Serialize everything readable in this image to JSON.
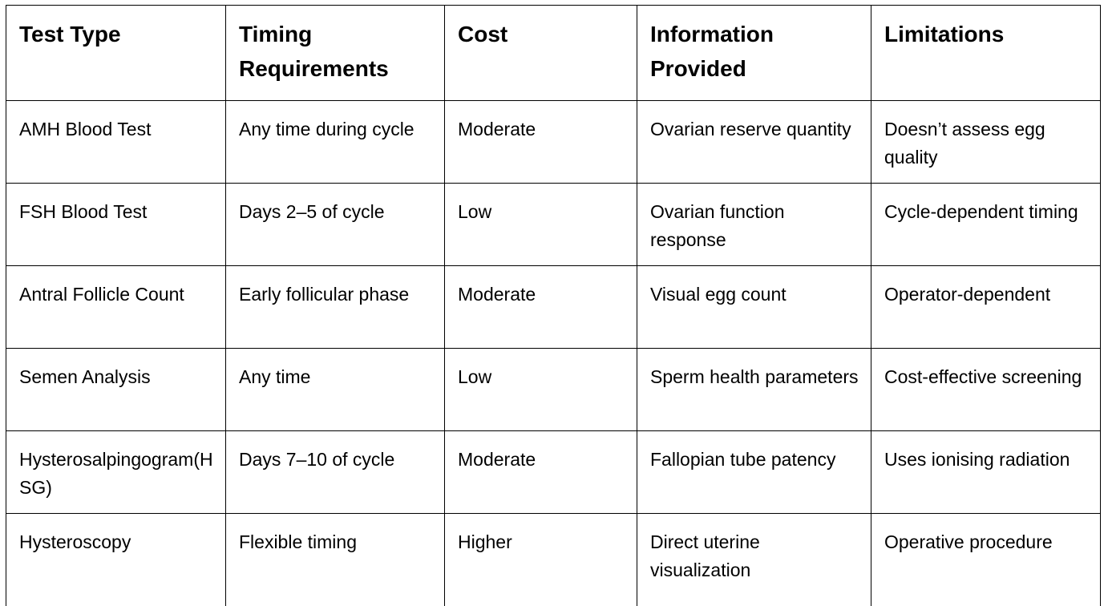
{
  "table": {
    "headers": [
      "Test Type",
      "Timing Requirements",
      "Cost",
      "Information Provided",
      "Limitations"
    ],
    "rows": [
      [
        "AMH Blood Test",
        "Any time during cycle",
        "Moderate",
        "Ovarian reserve quantity",
        "Doesn’t assess egg quality"
      ],
      [
        "FSH Blood Test",
        "Days 2–5 of cycle",
        "Low",
        "Ovarian function response",
        "Cycle-dependent timing"
      ],
      [
        "Antral Follicle Count",
        "Early follicular phase",
        "Moderate",
        "Visual egg count",
        "Operator-dependent"
      ],
      [
        "Semen Analysis",
        "Any time",
        "Low",
        "Sperm health parameters",
        "Cost-effective screening"
      ],
      [
        "Hysterosalpingogram(HSG)",
        "Days 7–10 of cycle",
        "Moderate",
        "Fallopian tube patency",
        "Uses ionising radiation"
      ],
      [
        "Hysteroscopy",
        "Flexible timing",
        "Higher",
        "Direct uterine visualization",
        "Operative procedure"
      ]
    ]
  }
}
